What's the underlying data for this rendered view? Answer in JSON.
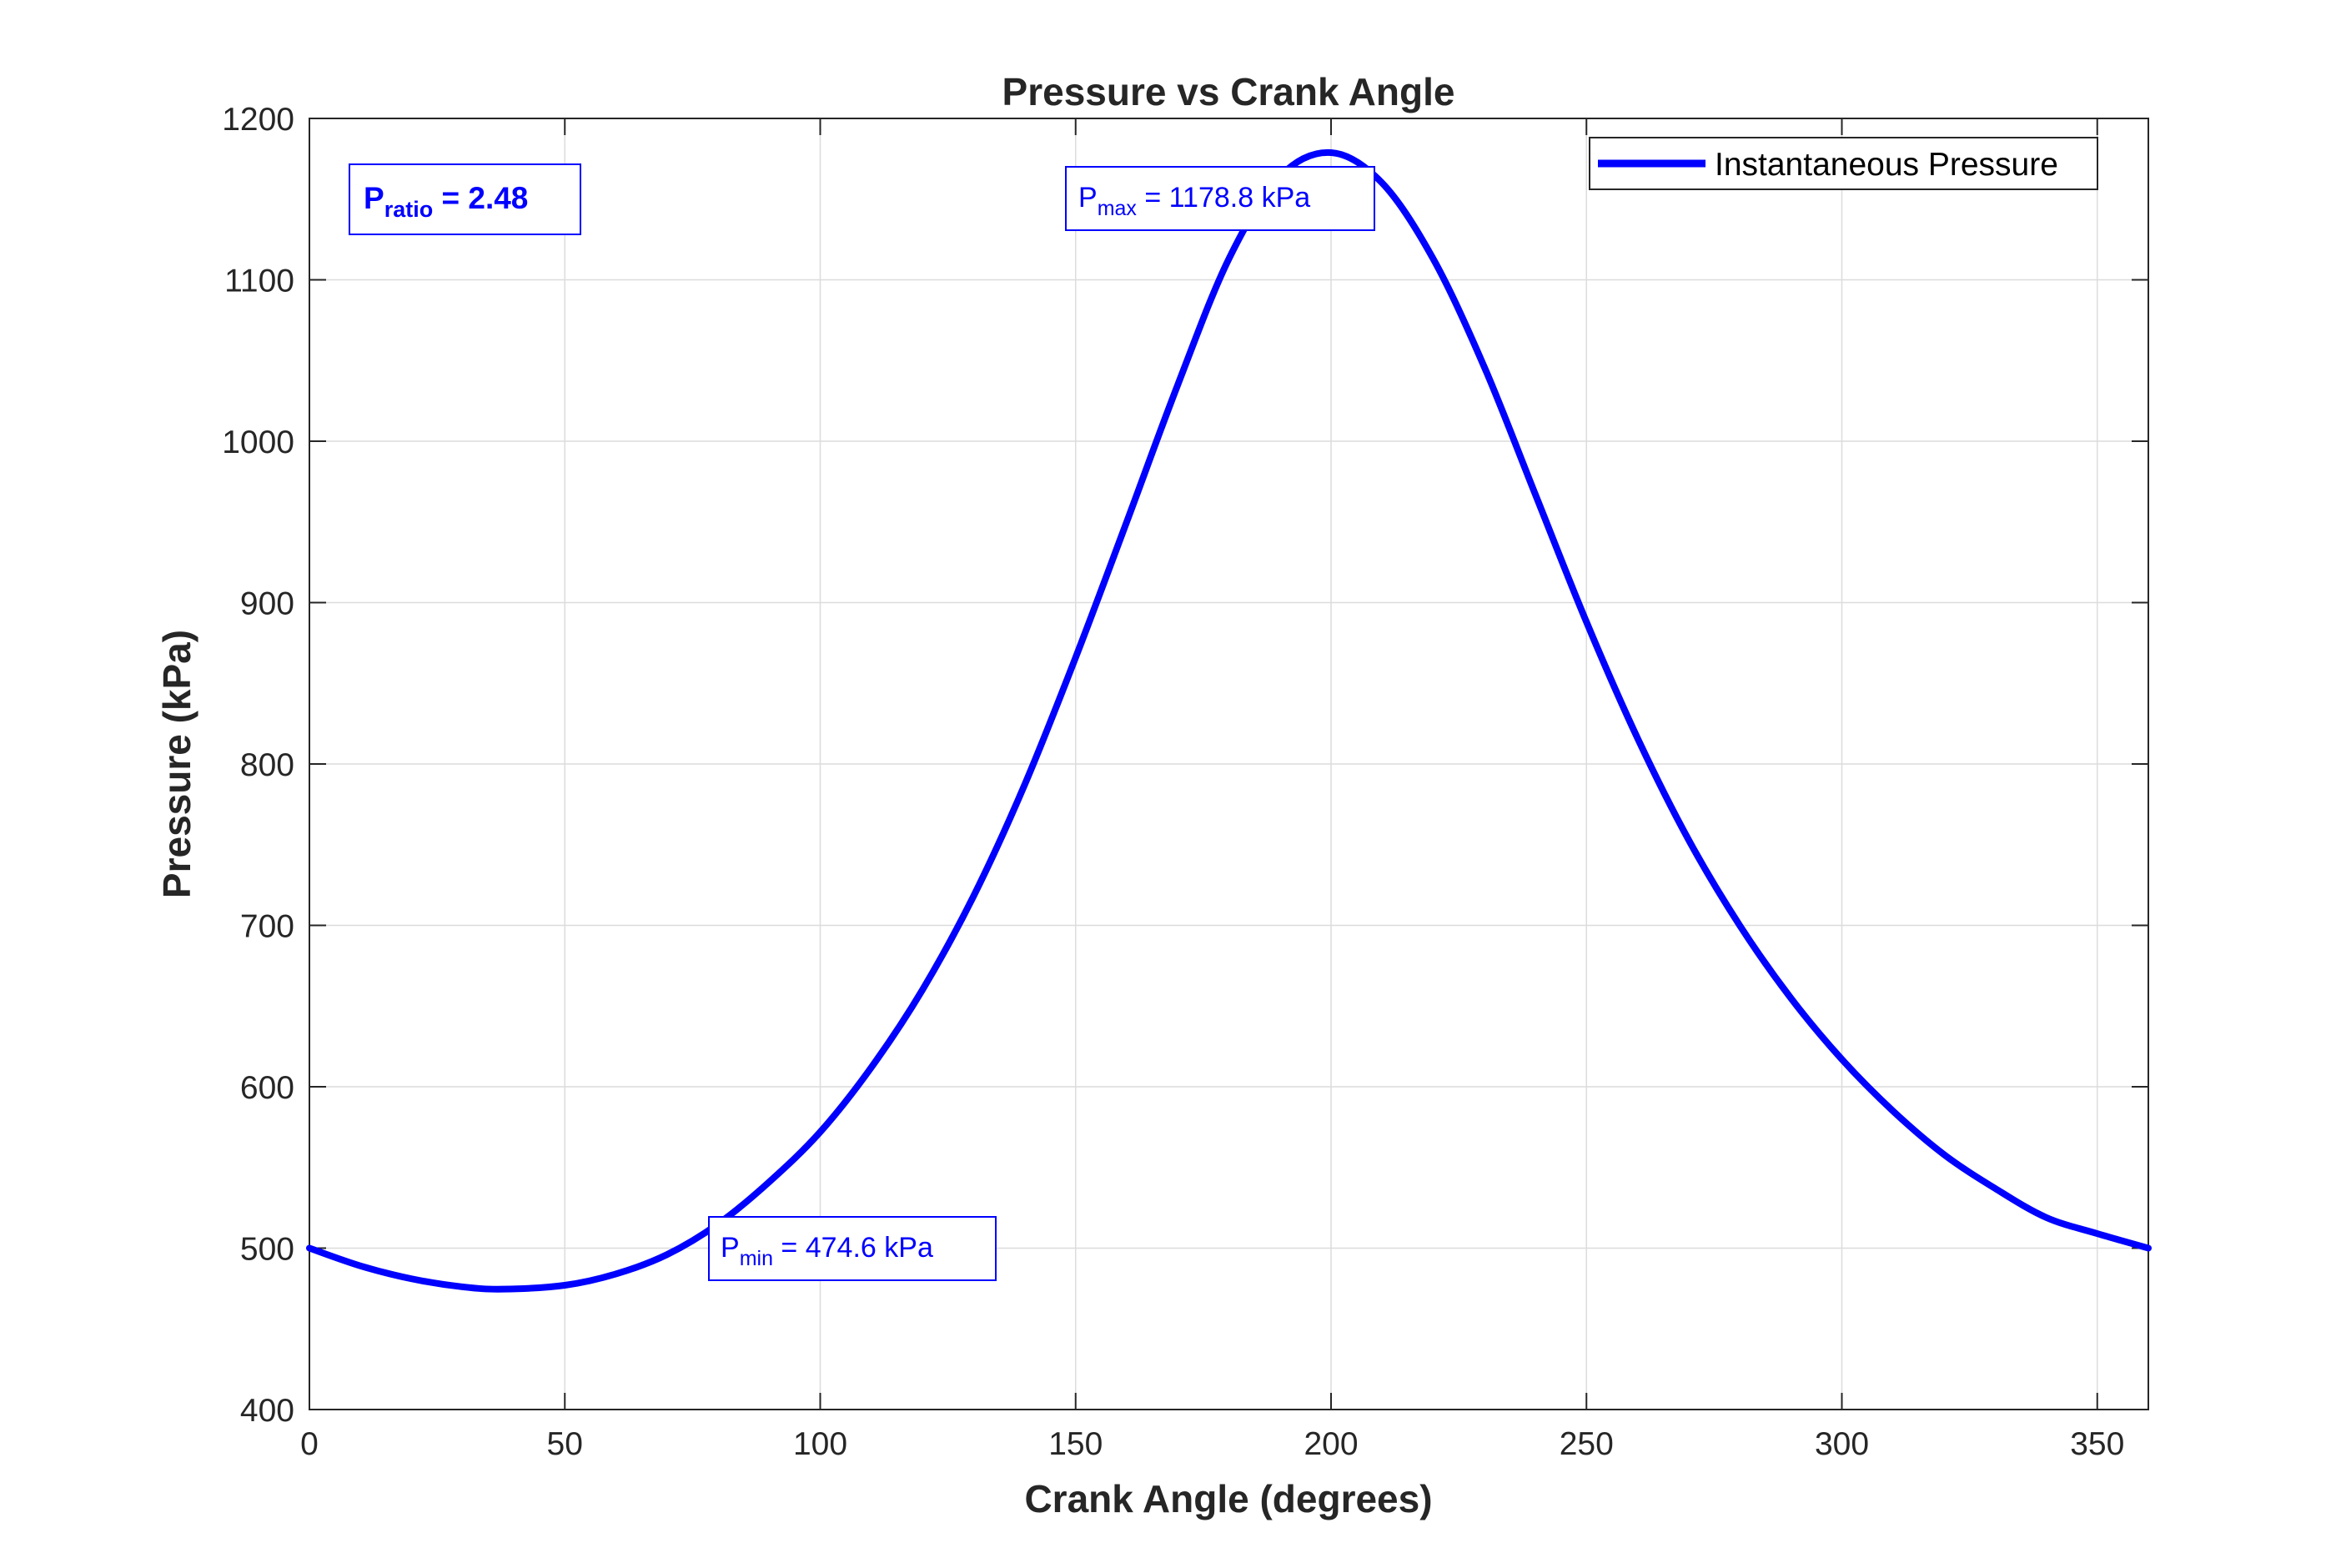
{
  "chart_data": {
    "type": "line",
    "title": "Pressure vs Crank Angle",
    "xlabel": "Crank Angle (degrees)",
    "ylabel": "Pressure (kPa)",
    "xlim": [
      0,
      360
    ],
    "ylim": [
      400,
      1200
    ],
    "xticks": [
      0,
      50,
      100,
      150,
      200,
      250,
      300,
      350
    ],
    "yticks": [
      400,
      500,
      600,
      700,
      800,
      900,
      1000,
      1100,
      1200
    ],
    "grid": true,
    "legend_position": "top-right",
    "series": [
      {
        "name": "Instantaneous Pressure",
        "color": "#0000ff",
        "x": [
          0,
          10,
          20,
          30,
          38,
          50,
          60,
          70,
          80,
          90,
          100,
          110,
          120,
          130,
          140,
          150,
          160,
          170,
          180,
          190,
          200,
          210,
          220,
          230,
          240,
          250,
          260,
          270,
          280,
          290,
          300,
          310,
          320,
          330,
          340,
          350,
          360
        ],
        "y": [
          500,
          489,
          481,
          476,
          474.6,
          477,
          484,
          496,
          515,
          541,
          572,
          612,
          660,
          718,
          787,
          866,
          950,
          1035,
          1113,
          1164,
          1178.8,
          1160,
          1113,
          1046,
          967,
          888,
          816,
          753,
          700,
          655,
          617,
          585,
          558,
          537,
          519,
          509,
          500
        ]
      }
    ],
    "annotations": {
      "pmax": {
        "symbol": "P",
        "subscript": "max",
        "text": " =  1178.8  kPa"
      },
      "pmin": {
        "symbol": "P",
        "subscript": "min",
        "text": " =  474.6  kPa"
      },
      "pratio": {
        "symbol": "P",
        "subscript": "ratio",
        "text": " =  2.48"
      }
    }
  }
}
